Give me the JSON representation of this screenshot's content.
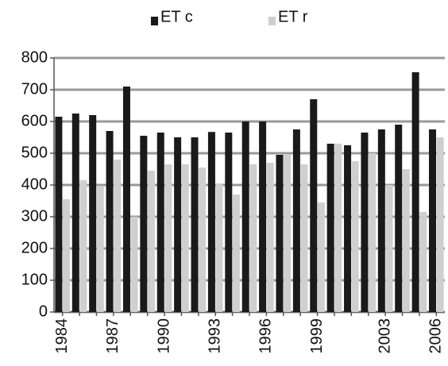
{
  "chart_data": {
    "type": "bar",
    "categories": [
      "1984",
      null,
      null,
      "1987",
      null,
      null,
      "1990",
      null,
      null,
      "1993",
      null,
      null,
      "1996",
      null,
      null,
      "1999",
      null,
      null,
      null,
      "2003",
      null,
      null,
      "2006"
    ],
    "series": [
      {
        "name": "ET c",
        "color": "#1a1a1a",
        "values": [
          615,
          625,
          620,
          570,
          710,
          555,
          565,
          550,
          550,
          567,
          565,
          600,
          600,
          495,
          575,
          670,
          530,
          525,
          565,
          575,
          590,
          755,
          575
        ]
      },
      {
        "name": "ET r",
        "color": "#cfcfcf",
        "values": [
          355,
          415,
          395,
          480,
          300,
          445,
          465,
          465,
          455,
          405,
          370,
          465,
          470,
          495,
          465,
          345,
          530,
          475,
          500,
          400,
          450,
          315,
          550
        ]
      }
    ],
    "ylim": [
      0,
      800
    ],
    "yticks": [
      0,
      100,
      200,
      300,
      400,
      500,
      600,
      700,
      800
    ],
    "grid": true
  }
}
